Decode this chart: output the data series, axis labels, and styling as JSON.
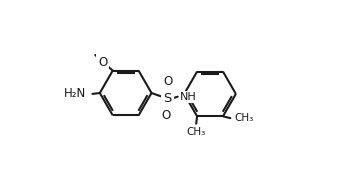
{
  "background_color": "#ffffff",
  "line_color": "#1a1a1a",
  "line_width": 1.5,
  "dbo": 0.013,
  "font_size": 8.5,
  "r1cx": 0.285,
  "r1cy": 0.52,
  "r1r": 0.155,
  "r2cx": 0.72,
  "r2cy": 0.5,
  "r2r": 0.155,
  "labels": {
    "amino": "H₂N",
    "methoxy_O": "O",
    "methoxy_label": "O",
    "S": "S",
    "O_top": "O",
    "O_bot": "O",
    "NH": "NH",
    "CH3_1": "CH₃",
    "CH3_2": "CH₃"
  }
}
